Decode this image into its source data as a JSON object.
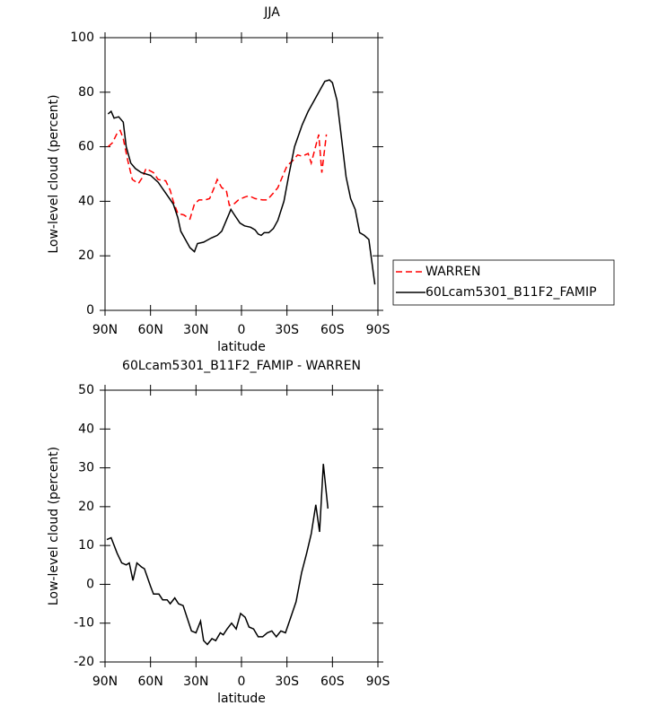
{
  "chart_data": [
    {
      "type": "line",
      "title": "JJA",
      "xlabel": "latitude",
      "ylabel": "Low-level cloud (percent)",
      "xlim": [
        90,
        -90
      ],
      "ylim": [
        0,
        100
      ],
      "xticks": [
        {
          "value": 90,
          "label": "90N"
        },
        {
          "value": 60,
          "label": "60N"
        },
        {
          "value": 30,
          "label": "30N"
        },
        0,
        {
          "value": -30,
          "label": "30S"
        },
        {
          "value": -60,
          "label": "60S"
        },
        {
          "value": -90,
          "label": "90S"
        }
      ],
      "yticks": [
        0,
        20,
        40,
        60,
        80,
        100
      ],
      "legend": "outside-right",
      "series": [
        {
          "name": "WARREN",
          "color": "#ff0000",
          "linestyle": "dashed",
          "x": [
            88,
            85,
            82,
            80,
            78,
            75,
            72,
            68,
            65,
            63,
            58,
            55,
            50,
            47,
            45,
            42,
            38,
            34,
            31,
            28,
            24,
            21,
            18,
            16,
            13,
            10,
            8,
            5,
            2,
            -2,
            -5,
            -9,
            -14,
            -17,
            -21,
            -24,
            -27,
            -30,
            -34,
            -37,
            -40,
            -44,
            -46,
            -51,
            -53,
            -56
          ],
          "values": [
            60,
            61.5,
            65,
            66,
            63,
            55,
            48,
            46.5,
            49,
            52,
            50.5,
            48,
            47.5,
            44,
            40,
            35.5,
            35,
            33.5,
            39,
            40.5,
            40.5,
            41,
            45,
            48,
            45,
            44,
            38.5,
            39,
            40.5,
            41.5,
            42,
            41,
            40.5,
            40.5,
            43,
            45,
            49,
            53,
            55,
            57,
            56.5,
            57.5,
            54,
            64.5,
            50.5,
            64.5
          ]
        },
        {
          "name": "60Lcam5301_B11F2_FAMIP",
          "color": "#000000",
          "linestyle": "solid",
          "x": [
            88,
            86,
            84,
            81,
            78,
            76,
            73,
            70,
            66,
            60,
            55,
            50,
            45,
            42,
            40,
            37,
            34,
            31,
            29,
            25,
            20,
            16,
            13,
            10,
            7,
            4,
            1,
            -2,
            -6,
            -9,
            -11,
            -13,
            -15,
            -18,
            -21,
            -24,
            -28,
            -31,
            -35,
            -40,
            -44,
            -48,
            -52,
            -55,
            -58,
            -60,
            -63,
            -66,
            -69,
            -72,
            -75,
            -78,
            -81,
            -84,
            -88
          ],
          "values": [
            72,
            73,
            70.5,
            71,
            69,
            60,
            54,
            52,
            50.5,
            49.5,
            47,
            43,
            39,
            34,
            29,
            26,
            23,
            21.5,
            24.5,
            25,
            26.5,
            27.5,
            29,
            33,
            37,
            34.5,
            32,
            31,
            30.5,
            29.5,
            28,
            27.5,
            28.5,
            28.5,
            30,
            33,
            40,
            49,
            60,
            68,
            73,
            77,
            81,
            84,
            84.5,
            83.5,
            77,
            63,
            49,
            41,
            37,
            28.5,
            27.5,
            26,
            9.5
          ]
        }
      ]
    },
    {
      "type": "line",
      "title": "60Lcam5301_B11F2_FAMIP - WARREN",
      "xlabel": "latitude",
      "ylabel": "Low-level cloud (percent)",
      "xlim": [
        90,
        -90
      ],
      "ylim": [
        -20,
        50
      ],
      "xticks": [
        {
          "value": 90,
          "label": "90N"
        },
        {
          "value": 60,
          "label": "60N"
        },
        {
          "value": 30,
          "label": "30N"
        },
        0,
        {
          "value": -30,
          "label": "30S"
        },
        {
          "value": -60,
          "label": "60S"
        },
        {
          "value": -90,
          "label": "90S"
        }
      ],
      "yticks": [
        -20,
        -10,
        0,
        10,
        20,
        30,
        40,
        50
      ],
      "series": [
        {
          "color": "#000000",
          "linestyle": "solid",
          "x": [
            88.8,
            86,
            82,
            79,
            76,
            74,
            71.6,
            69,
            66,
            64,
            60,
            58,
            54.5,
            52,
            49,
            47,
            44,
            41.5,
            38.5,
            35.5,
            33,
            30,
            27,
            25,
            22.5,
            19.5,
            17,
            14,
            12,
            9.5,
            6.5,
            3.5,
            0.6,
            -2.4,
            -5,
            -8,
            -11,
            -14,
            -17,
            -20,
            -23,
            -26,
            -29,
            -32.5,
            -36,
            -39.7,
            -43,
            -46,
            -49,
            -51.5,
            -54,
            -57
          ],
          "values": [
            11.5,
            12,
            8,
            5.5,
            5,
            5.5,
            1,
            5.5,
            4.5,
            4,
            -0.5,
            -2.5,
            -2.5,
            -4,
            -4,
            -5,
            -3.5,
            -5,
            -5.5,
            -9,
            -12,
            -12.5,
            -9.5,
            -14.5,
            -15.5,
            -14,
            -14.5,
            -12.5,
            -13,
            -11.5,
            -10,
            -11.5,
            -7.5,
            -8.5,
            -11,
            -11.5,
            -13.5,
            -13.5,
            -12.5,
            -12,
            -13.5,
            -12,
            -12.5,
            -8.5,
            -4.5,
            3,
            8,
            13,
            20.5,
            13.5,
            31,
            19.5
          ]
        }
      ]
    }
  ]
}
